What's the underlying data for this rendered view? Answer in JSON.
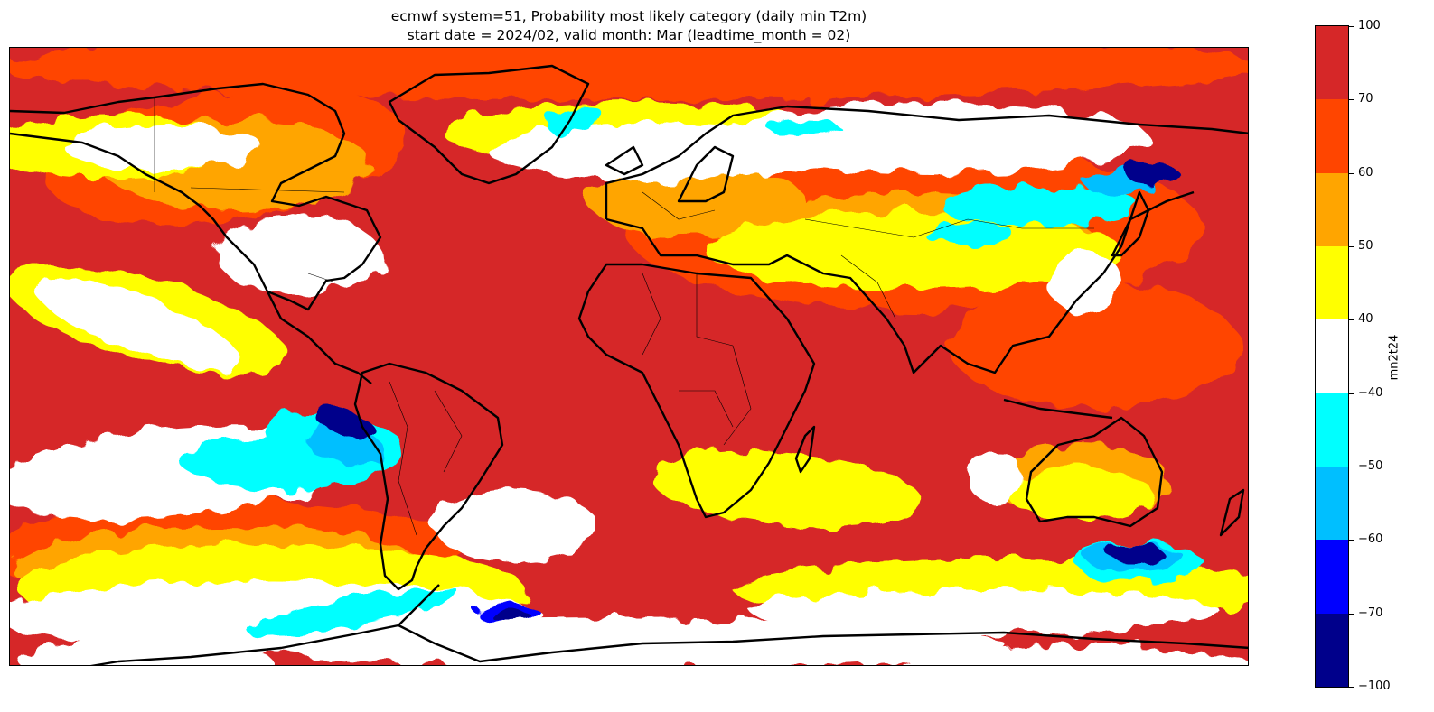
{
  "title": {
    "line1": "ecmwf system=51, Probability most likely category (daily min T2m)",
    "line2": "start date = 2024/02, valid month: Mar (leadtime_month = 02)"
  },
  "colorbar": {
    "label": "mn2t24",
    "ticks": [
      "100",
      "70",
      "60",
      "50",
      "40",
      "−40",
      "−50",
      "−60",
      "−70",
      "−100"
    ],
    "segments": [
      {
        "range": "70 to 100",
        "color": "#d62728"
      },
      {
        "range": "60 to 70",
        "color": "#ff4500"
      },
      {
        "range": "50 to 60",
        "color": "#ffa500"
      },
      {
        "range": "40 to 50",
        "color": "#ffff00"
      },
      {
        "range": "-40 to 40",
        "color": "#ffffff"
      },
      {
        "range": "-50 to -40",
        "color": "#00ffff"
      },
      {
        "range": "-60 to -50",
        "color": "#00bfff"
      },
      {
        "range": "-70 to -60",
        "color": "#0000ff"
      },
      {
        "range": "-100 to -70",
        "color": "#00008b"
      }
    ]
  },
  "map": {
    "projection": "equirectangular, global",
    "colors": {
      "warm_strong": "#d62728",
      "warm_orange": "#ff4500",
      "warm_amber": "#ffa500",
      "warm_yellow": "#ffff00",
      "neutral": "#ffffff",
      "cold_cyan": "#00ffff",
      "cold_sky": "#00bfff",
      "cold_blue": "#0000ff",
      "cold_navy": "#00008b",
      "coastline": "#000000"
    }
  }
}
